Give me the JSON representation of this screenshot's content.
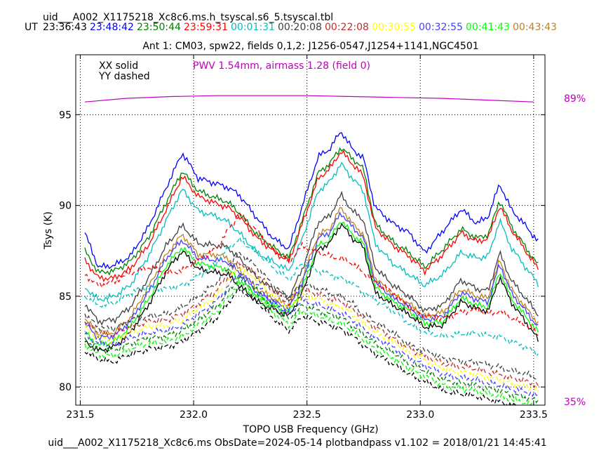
{
  "header": {
    "filename": "uid___A002_X1175218_Xc8c6.ms.h_tsyscal.s6_5.tsyscal.tbl",
    "ut_label": "UT",
    "times": [
      {
        "text": "23:36:43",
        "color": "#000000"
      },
      {
        "text": "23:48:42",
        "color": "#0000ff"
      },
      {
        "text": "23:50:44",
        "color": "#008000"
      },
      {
        "text": "23:59:31",
        "color": "#ff0000"
      },
      {
        "text": "00:01:31",
        "color": "#00bfbf"
      },
      {
        "text": "00:20:08",
        "color": "#404040"
      },
      {
        "text": "00:22:08",
        "color": "#c03030"
      },
      {
        "text": "00:30:55",
        "color": "#ffff00"
      },
      {
        "text": "00:32:55",
        "color": "#4040ff"
      },
      {
        "text": "00:41:43",
        "color": "#00ff00"
      },
      {
        "text": "00:43:43",
        "color": "#c08020"
      }
    ]
  },
  "chart_data": {
    "type": "line",
    "title": "Ant 1: CM03,  spw22,  fields 0,1,2: J1256-0547,J1254+1141,NGC4501",
    "xlabel": "TOPO USB Frequency (GHz)",
    "ylabel": "Tsys (K)",
    "xlim": [
      231.48,
      233.55
    ],
    "ylim": [
      79,
      98.3
    ],
    "xticks": [
      "231.5",
      "232.0",
      "232.5",
      "233.0",
      "233.5"
    ],
    "xtick_values": [
      231.5,
      232.0,
      232.5,
      233.0,
      233.5
    ],
    "yticks": [
      "80",
      "85",
      "90",
      "95"
    ],
    "ytick_values": [
      80,
      85,
      90,
      95
    ],
    "grid": true,
    "legend_text": [
      "XX solid",
      "YY dashed"
    ],
    "annotation": "PWV 1.54mm, airmass 1.28 (field 0)",
    "right_labels": {
      "top": "89%",
      "bottom": "35%"
    },
    "right_label_color": "#bf00bf",
    "transmission_curve": {
      "color": "#bf00bf",
      "x": [
        231.52,
        231.7,
        231.9,
        232.1,
        232.3,
        232.5,
        232.7,
        232.9,
        233.1,
        233.3,
        233.5
      ],
      "y": [
        95.7,
        95.9,
        96.0,
        96.05,
        96.05,
        96.05,
        96.0,
        95.95,
        95.9,
        95.8,
        95.7
      ]
    },
    "x": [
      231.52,
      231.58,
      231.65,
      231.72,
      231.8,
      231.88,
      231.95,
      232.02,
      232.1,
      232.15,
      232.2,
      232.28,
      232.35,
      232.42,
      232.48,
      232.55,
      232.6,
      232.65,
      232.7,
      232.75,
      232.8,
      232.88,
      232.95,
      233.02,
      233.1,
      233.18,
      233.25,
      233.3,
      233.35,
      233.4,
      233.47,
      233.52
    ],
    "series": [
      {
        "color": "#0000ff",
        "dash": false,
        "values": [
          88.5,
          86.6,
          86.7,
          87.2,
          88.8,
          91.0,
          92.9,
          91.5,
          91.2,
          91.0,
          90.6,
          89.3,
          88.2,
          87.6,
          90.0,
          92.7,
          93.1,
          94.1,
          93.1,
          92.6,
          89.9,
          89.0,
          88.5,
          87.4,
          88.6,
          89.8,
          89.0,
          89.4,
          91.2,
          89.8,
          88.8,
          88.0
        ]
      },
      {
        "color": "#008000",
        "dash": false,
        "values": [
          87.5,
          86.3,
          86.4,
          86.9,
          88.2,
          90.2,
          91.9,
          90.8,
          90.4,
          90.2,
          89.6,
          88.4,
          87.7,
          87.1,
          89.2,
          91.8,
          92.3,
          93.2,
          92.6,
          92.0,
          89.0,
          88.0,
          87.4,
          86.6,
          87.6,
          88.7,
          88.2,
          88.4,
          90.3,
          88.9,
          87.6,
          86.7
        ]
      },
      {
        "color": "#ff0000",
        "dash": false,
        "values": [
          87.0,
          86.0,
          86.0,
          86.5,
          87.8,
          89.8,
          91.6,
          90.5,
          90.1,
          89.9,
          89.4,
          88.2,
          87.5,
          86.9,
          89.0,
          91.5,
          92.0,
          93.0,
          92.3,
          91.6,
          88.8,
          87.8,
          87.2,
          86.4,
          87.3,
          88.5,
          88.0,
          88.2,
          90.0,
          88.7,
          87.4,
          86.5
        ]
      },
      {
        "color": "#00bfbf",
        "dash": false,
        "values": [
          85.5,
          84.8,
          85.0,
          85.6,
          87.2,
          89.2,
          90.9,
          89.7,
          89.4,
          89.1,
          88.5,
          87.4,
          86.9,
          86.4,
          88.2,
          90.8,
          91.3,
          92.3,
          91.5,
          90.8,
          87.9,
          86.8,
          86.2,
          85.6,
          86.2,
          87.4,
          87.1,
          87.2,
          89.2,
          87.7,
          86.5,
          85.7
        ]
      },
      {
        "color": "#404040",
        "dash": false,
        "values": [
          84.6,
          83.6,
          83.7,
          84.4,
          86.0,
          87.8,
          88.9,
          87.9,
          87.8,
          87.7,
          87.1,
          86.0,
          85.4,
          84.9,
          86.5,
          89.1,
          89.4,
          90.6,
          89.7,
          89.2,
          86.6,
          85.6,
          85.0,
          84.2,
          84.5,
          85.9,
          85.4,
          85.3,
          87.4,
          85.9,
          84.8,
          84.0
        ]
      },
      {
        "color": "#c08020",
        "dash": false,
        "values": [
          83.8,
          82.9,
          83.0,
          83.8,
          85.5,
          87.3,
          88.4,
          87.3,
          87.3,
          87.1,
          86.5,
          85.4,
          84.9,
          84.5,
          86.0,
          88.4,
          88.7,
          89.9,
          89.0,
          88.4,
          86.0,
          85.1,
          84.6,
          83.9,
          84.1,
          85.4,
          85.0,
          84.9,
          87.0,
          85.4,
          84.3,
          83.5
        ]
      },
      {
        "color": "#4040ff",
        "dash": false,
        "values": [
          83.5,
          82.7,
          82.8,
          83.6,
          85.2,
          87.1,
          88.1,
          87.1,
          87.0,
          86.9,
          86.3,
          85.2,
          84.7,
          84.3,
          85.8,
          88.2,
          88.5,
          89.6,
          88.8,
          88.2,
          85.8,
          84.9,
          84.4,
          83.7,
          83.9,
          85.2,
          84.8,
          84.7,
          86.8,
          85.2,
          84.1,
          83.3
        ]
      },
      {
        "color": "#00ff00",
        "dash": false,
        "values": [
          83.0,
          82.3,
          82.5,
          83.3,
          84.8,
          86.7,
          87.7,
          86.8,
          86.6,
          86.5,
          85.9,
          85.0,
          84.5,
          84.1,
          85.5,
          87.8,
          88.1,
          89.2,
          88.4,
          87.9,
          85.5,
          84.7,
          84.2,
          83.5,
          83.6,
          84.9,
          84.5,
          84.4,
          86.4,
          84.9,
          83.8,
          83.0
        ]
      },
      {
        "color": "#000000",
        "dash": false,
        "values": [
          82.5,
          82.0,
          82.2,
          83.0,
          84.5,
          86.4,
          87.5,
          86.5,
          86.3,
          86.2,
          85.6,
          84.7,
          84.3,
          83.9,
          85.2,
          87.6,
          87.9,
          89.0,
          88.2,
          87.7,
          85.2,
          84.5,
          84.0,
          83.3,
          83.4,
          84.7,
          84.3,
          84.2,
          86.1,
          84.7,
          83.5,
          82.6
        ]
      },
      {
        "color": "#ff0000",
        "dash": true,
        "values": [
          86.2,
          85.6,
          85.8,
          86.3,
          86.6,
          86.3,
          86.4,
          87.0,
          87.6,
          88.6,
          89.5,
          88.6,
          87.6,
          86.9,
          87.8,
          87.4,
          87.2,
          87.1,
          86.8,
          86.3,
          85.8,
          85.2,
          84.4,
          83.9,
          83.8,
          84.1,
          84.3,
          84.0,
          84.2,
          83.8,
          83.4,
          82.9
        ]
      },
      {
        "color": "#00bfbf",
        "dash": true,
        "values": [
          85.0,
          84.5,
          84.6,
          85.2,
          85.5,
          85.4,
          85.6,
          86.1,
          86.8,
          87.6,
          88.1,
          87.4,
          86.6,
          85.9,
          86.8,
          86.4,
          86.2,
          86.0,
          85.7,
          85.2,
          84.8,
          84.2,
          83.5,
          83.0,
          82.8,
          82.9,
          83.0,
          82.8,
          82.8,
          82.5,
          82.2,
          81.8
        ]
      },
      {
        "color": "#404040",
        "dash": true,
        "values": [
          84.0,
          83.3,
          83.2,
          83.7,
          83.9,
          84.0,
          84.4,
          85.0,
          85.7,
          86.5,
          87.4,
          86.6,
          85.6,
          84.9,
          85.7,
          85.4,
          85.2,
          85.0,
          84.6,
          84.0,
          83.6,
          83.0,
          82.3,
          82.0,
          81.6,
          81.4,
          81.4,
          81.2,
          81.1,
          80.9,
          80.7,
          80.5
        ]
      },
      {
        "color": "#c03030",
        "dash": true,
        "values": [
          83.6,
          83.0,
          82.9,
          83.3,
          83.6,
          83.7,
          84.0,
          84.6,
          85.3,
          86.1,
          86.9,
          86.2,
          85.3,
          84.6,
          85.4,
          85.1,
          84.9,
          84.7,
          84.3,
          83.8,
          83.3,
          82.7,
          82.1,
          81.7,
          81.3,
          81.1,
          81.0,
          80.8,
          80.7,
          80.5,
          80.3,
          80.1
        ]
      },
      {
        "color": "#ffff00",
        "dash": true,
        "values": [
          83.3,
          82.7,
          82.6,
          83.0,
          83.3,
          83.4,
          83.7,
          84.3,
          85.0,
          85.8,
          86.6,
          85.9,
          85.0,
          84.3,
          85.1,
          84.8,
          84.6,
          84.4,
          84.0,
          83.5,
          83.0,
          82.5,
          81.9,
          81.5,
          81.0,
          80.8,
          80.7,
          80.5,
          80.4,
          80.2,
          80.0,
          79.8
        ]
      },
      {
        "color": "#4040ff",
        "dash": true,
        "values": [
          82.9,
          82.4,
          82.3,
          82.7,
          83.0,
          83.1,
          83.4,
          84.0,
          84.7,
          85.5,
          86.3,
          85.6,
          84.7,
          84.0,
          84.8,
          84.5,
          84.3,
          84.1,
          83.7,
          83.2,
          82.7,
          82.2,
          81.6,
          81.2,
          80.7,
          80.5,
          80.4,
          80.2,
          80.1,
          79.9,
          79.7,
          79.5
        ]
      },
      {
        "color": "#008000",
        "dash": true,
        "values": [
          82.6,
          82.1,
          82.0,
          82.4,
          82.7,
          82.8,
          83.1,
          83.7,
          84.4,
          85.2,
          86.0,
          85.3,
          84.4,
          83.7,
          84.5,
          84.2,
          84.0,
          83.8,
          83.4,
          82.9,
          82.4,
          81.9,
          81.3,
          80.9,
          80.4,
          80.2,
          80.1,
          79.9,
          79.8,
          79.6,
          79.4,
          79.2
        ]
      },
      {
        "color": "#00ff00",
        "dash": true,
        "values": [
          82.3,
          81.8,
          81.7,
          82.1,
          82.4,
          82.5,
          82.8,
          83.4,
          84.1,
          84.9,
          85.7,
          85.0,
          84.1,
          83.4,
          84.2,
          83.9,
          83.7,
          83.5,
          83.1,
          82.6,
          82.1,
          81.6,
          81.0,
          80.6,
          80.1,
          79.9,
          79.8,
          79.6,
          79.5,
          79.3,
          79.1,
          78.9
        ]
      },
      {
        "color": "#000000",
        "dash": true,
        "values": [
          82.0,
          81.5,
          81.4,
          81.8,
          82.1,
          82.2,
          82.5,
          83.1,
          83.8,
          84.6,
          85.4,
          84.7,
          83.8,
          83.1,
          83.9,
          83.6,
          83.4,
          83.2,
          82.8,
          82.3,
          81.8,
          81.3,
          80.7,
          80.3,
          79.8,
          79.6,
          79.5,
          79.3,
          79.2,
          79.0,
          78.8,
          78.6
        ]
      }
    ]
  },
  "footer": {
    "text": "uid___A002_X1175218_Xc8c6.ms  ObsDate=2024-05-14   plotbandpass v1.102 = 2018/01/21 14:45:41"
  }
}
